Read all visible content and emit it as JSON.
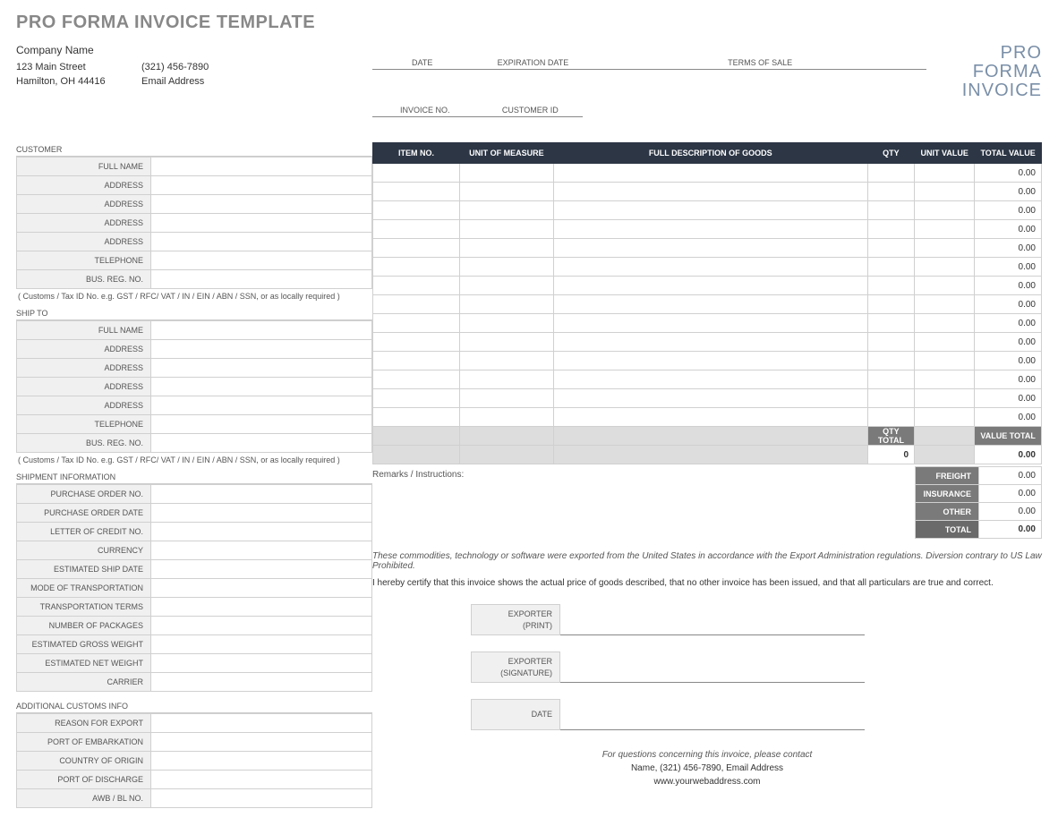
{
  "title": "PRO FORMA INVOICE TEMPLATE",
  "brand": {
    "l1": "PRO",
    "l2": "FORMA",
    "l3": "INVOICE"
  },
  "company": {
    "name": "Company Name",
    "street": "123 Main Street",
    "phone": "(321) 456-7890",
    "city": "Hamilton, OH  44416",
    "email": "Email Address"
  },
  "header_fields": {
    "date": "DATE",
    "expiration": "EXPIRATION DATE",
    "terms": "TERMS OF SALE",
    "invoice_no": "INVOICE NO.",
    "customer_id": "CUSTOMER ID"
  },
  "customer": {
    "section": "CUSTOMER",
    "labels": [
      "FULL NAME",
      "ADDRESS",
      "ADDRESS",
      "ADDRESS",
      "ADDRESS",
      "TELEPHONE",
      "BUS. REG. NO."
    ],
    "note": "( Customs / Tax ID No. e.g. GST / RFC/ VAT / IN / EIN / ABN / SSN, or as locally required )"
  },
  "shipto": {
    "section": "SHIP TO",
    "labels": [
      "FULL NAME",
      "ADDRESS",
      "ADDRESS",
      "ADDRESS",
      "ADDRESS",
      "TELEPHONE",
      "BUS. REG. NO."
    ],
    "note": "( Customs / Tax ID No. e.g. GST / RFC/ VAT / IN / EIN / ABN / SSN, or as locally required )"
  },
  "shipment": {
    "section": "SHIPMENT INFORMATION",
    "labels": [
      "PURCHASE ORDER NO.",
      "PURCHASE ORDER DATE",
      "LETTER OF CREDIT NO.",
      "CURRENCY",
      "ESTIMATED SHIP DATE",
      "MODE OF TRANSPORTATION",
      "TRANSPORTATION TERMS",
      "NUMBER OF PACKAGES",
      "ESTIMATED GROSS WEIGHT",
      "ESTIMATED NET WEIGHT",
      "CARRIER"
    ]
  },
  "customs": {
    "section": "ADDITIONAL CUSTOMS INFO",
    "labels": [
      "REASON FOR EXPORT",
      "PORT OF EMBARKATION",
      "COUNTRY OF ORIGIN",
      "PORT OF DISCHARGE",
      "AWB / BL NO."
    ]
  },
  "items": {
    "headers": [
      "ITEM NO.",
      "UNIT OF MEASURE",
      "FULL DESCRIPTION OF GOODS",
      "QTY",
      "UNIT VALUE",
      "TOTAL VALUE"
    ],
    "col_widths": [
      "13%",
      "14%",
      "47%",
      "7%",
      "9%",
      "10%"
    ],
    "rows": 14,
    "zero": "0.00",
    "qty_total_label": "QTY TOTAL",
    "value_total_label": "VALUE TOTAL",
    "qty_total": "0",
    "value_total": "0.00"
  },
  "remarks_label": "Remarks / Instructions:",
  "summary": {
    "freight": {
      "label": "FREIGHT",
      "value": "0.00"
    },
    "insurance": {
      "label": "INSURANCE",
      "value": "0.00"
    },
    "other": {
      "label": "OTHER",
      "value": "0.00"
    },
    "total": {
      "label": "TOTAL",
      "value": "0.00"
    }
  },
  "legal": "These commodities, technology or software were exported from the United States in accordance with the Export Administration regulations.  Diversion contrary to US Law Prohibited.",
  "cert": "I hereby certify that this invoice shows the actual price of goods described, that no other invoice has been issued, and that all particulars are true and correct.",
  "sig": {
    "exporter": "EXPORTER",
    "print": "(PRINT)",
    "signature": "(SIGNATURE)",
    "date": "DATE"
  },
  "contact": {
    "question": "For questions concerning this invoice, please contact",
    "line": "Name, (321) 456-7890, Email Address",
    "web": "www.yourwebaddress.com"
  },
  "colors": {
    "header_bg": "#2c3645",
    "subheader_bg": "#7a7a7a",
    "field_bg": "#f0f0f0",
    "border": "#d0d0d0",
    "brand_text": "#7a8fa8"
  }
}
